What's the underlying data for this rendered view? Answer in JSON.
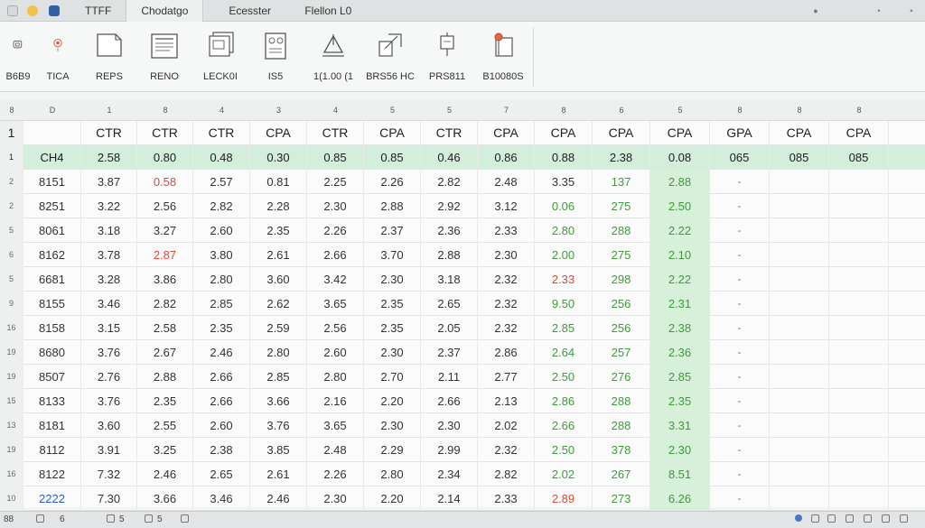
{
  "tabs": [
    {
      "label": "TTFF"
    },
    {
      "label": "Chodatgo",
      "active": true
    },
    {
      "label": "Ecesster"
    },
    {
      "label": "Flellon L0"
    }
  ],
  "ribbon": [
    {
      "label": "B6B9"
    },
    {
      "label": "TICA"
    },
    {
      "label": "REPS"
    },
    {
      "label": "RENO"
    },
    {
      "label": "LECK0I"
    },
    {
      "label": "IS5"
    },
    {
      "label": "1(1.00 (1"
    },
    {
      "label": "BRS56 HC"
    },
    {
      "label": "PRS811"
    },
    {
      "label": "B10080S"
    }
  ],
  "column_headers": [
    "D",
    "1",
    "8",
    "4",
    "3",
    "4",
    "5",
    "5",
    "7",
    "8",
    "6",
    "5",
    "8",
    "8",
    "8"
  ],
  "header_row": {
    "row_no": "1",
    "cells": [
      "",
      "CTR",
      "CTR",
      "CTR",
      "CPA",
      "CTR",
      "CPA",
      "CTR",
      "CPA",
      "CPA",
      "CPA",
      "CPA",
      "GPA",
      "CPA",
      "CPA"
    ]
  },
  "highlight_row": {
    "row_no": "1",
    "cells": [
      "CH4",
      "2.58",
      "0.80",
      "0.48",
      "0.30",
      "0.85",
      "0.85",
      "0.46",
      "0.86",
      "0.88",
      "2.38",
      "0.08",
      "065",
      "085",
      "085"
    ]
  },
  "data_rows": [
    {
      "row_no": "2",
      "cells": [
        "8151",
        "3.87",
        "0.58",
        "2.57",
        "0.81",
        "2.25",
        "2.26",
        "2.82",
        "2.48",
        "3.35",
        "137",
        "2.88",
        "-",
        "",
        ""
      ]
    },
    {
      "row_no": "2",
      "cells": [
        "8251",
        "3.22",
        "2.56",
        "2.82",
        "2.28",
        "2.30",
        "2.88",
        "2.92",
        "3.12",
        "0.06",
        "275",
        "2.50",
        "-",
        "",
        ""
      ]
    },
    {
      "row_no": "5",
      "cells": [
        "8061",
        "3.18",
        "3.27",
        "2.60",
        "2.35",
        "2.26",
        "2.37",
        "2.36",
        "2.33",
        "2.80",
        "288",
        "2.22",
        "-",
        "",
        ""
      ]
    },
    {
      "row_no": "6",
      "cells": [
        "8162",
        "3.78",
        "2.87",
        "3.80",
        "2.61",
        "2.66",
        "3.70",
        "2.88",
        "2.30",
        "2.00",
        "275",
        "2.10",
        "-",
        "",
        ""
      ]
    },
    {
      "row_no": "5",
      "cells": [
        "6681",
        "3.28",
        "3.86",
        "2.80",
        "3.60",
        "3.42",
        "2.30",
        "3.18",
        "2.32",
        "2.33",
        "298",
        "2.22",
        "-",
        "",
        ""
      ]
    },
    {
      "row_no": "9",
      "cells": [
        "8155",
        "3.46",
        "2.82",
        "2.85",
        "2.62",
        "3.65",
        "2.35",
        "2.65",
        "2.32",
        "9.50",
        "256",
        "2.31",
        "-",
        "",
        ""
      ]
    },
    {
      "row_no": "16",
      "cells": [
        "8158",
        "3.15",
        "2.58",
        "2.35",
        "2.59",
        "2.56",
        "2.35",
        "2.05",
        "2.32",
        "2.85",
        "256",
        "2.38",
        "-",
        "",
        ""
      ]
    },
    {
      "row_no": "19",
      "cells": [
        "8680",
        "3.76",
        "2.67",
        "2.46",
        "2.80",
        "2.60",
        "2.30",
        "2.37",
        "2.86",
        "2.64",
        "257",
        "2.36",
        "-",
        "",
        ""
      ]
    },
    {
      "row_no": "19",
      "cells": [
        "8507",
        "2.76",
        "2.88",
        "2.66",
        "2.85",
        "2.80",
        "2.70",
        "2.11",
        "2.77",
        "2.50",
        "276",
        "2.85",
        "-",
        "",
        ""
      ]
    },
    {
      "row_no": "15",
      "cells": [
        "8133",
        "3.76",
        "2.35",
        "2.66",
        "3.66",
        "2.16",
        "2.20",
        "2.66",
        "2.13",
        "2.86",
        "288",
        "2.35",
        "-",
        "",
        ""
      ]
    },
    {
      "row_no": "13",
      "cells": [
        "8181",
        "3.60",
        "2.55",
        "2.60",
        "3.76",
        "3.65",
        "2.30",
        "2.30",
        "2.02",
        "2.66",
        "288",
        "3.31",
        "-",
        "",
        ""
      ]
    },
    {
      "row_no": "19",
      "cells": [
        "8112",
        "3.91",
        "3.25",
        "2.38",
        "3.85",
        "2.48",
        "2.29",
        "2.99",
        "2.32",
        "2.50",
        "378",
        "2.30",
        "-",
        "",
        ""
      ]
    },
    {
      "row_no": "16",
      "cells": [
        "8122",
        "7.32",
        "2.46",
        "2.65",
        "2.61",
        "2.26",
        "2.80",
        "2.34",
        "2.82",
        "2.02",
        "267",
        "8.51",
        "-",
        "",
        ""
      ]
    },
    {
      "row_no": "10",
      "cells": [
        "2222",
        "7.30",
        "3.66",
        "3.46",
        "2.46",
        "2.30",
        "2.20",
        "2.14",
        "2.33",
        "2.89",
        "273",
        "6.26",
        "-",
        "",
        ""
      ]
    }
  ],
  "status": {
    "left1": "88",
    "left2": "6",
    "left3": "5",
    "left4": "5"
  },
  "colors": {
    "accent_green": "#d7f0da",
    "value_red": "#d84a3a",
    "value_green": "#3f9a3c",
    "value_blue": "#2d5ec4"
  }
}
